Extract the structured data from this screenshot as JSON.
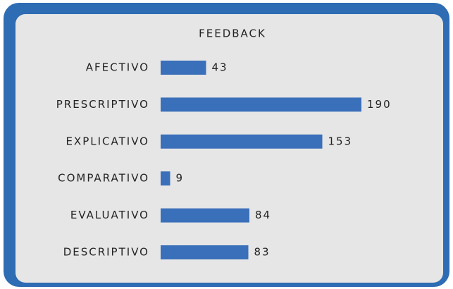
{
  "chart_data": {
    "type": "barh",
    "title": "FEEDBACK",
    "categories": [
      "AFECTIVO",
      "PRESCRIPTIVO",
      "EXPLICATIVO",
      "COMPARATIVO",
      "EVALUATIVO",
      "DESCRIPTIVO"
    ],
    "values": [
      43,
      190,
      153,
      9,
      84,
      83
    ],
    "color": "#3a6fba"
  }
}
